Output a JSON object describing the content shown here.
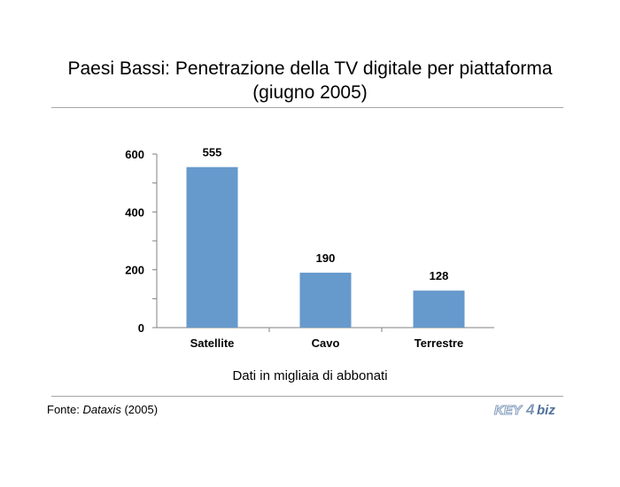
{
  "title_line1": "Paesi Bassi: Penetrazione della TV digitale per piattaforma",
  "title_line2": "(giugno 2005)",
  "note": "Dati in migliaia di abbonati",
  "source": {
    "prefix": "Fonte: ",
    "name": "Dataxis",
    "year": " (2005)"
  },
  "logo": {
    "text": "KEY4biz",
    "part1": "KEY",
    "part2": "4",
    "part3": "biz"
  },
  "colors": {
    "bar": "#6699cc",
    "axis": "#808080",
    "rule": "#a6a6a6"
  },
  "chart_data": {
    "type": "bar",
    "categories": [
      "Satellite",
      "Cavo",
      "Terrestre"
    ],
    "values": [
      555,
      190,
      128
    ],
    "data_labels": [
      "555",
      "190",
      "128"
    ],
    "ylim": [
      0,
      600
    ],
    "yticks": [
      0,
      200,
      400,
      600
    ],
    "xlabel": "",
    "ylabel": "",
    "grid": false,
    "legend": "none"
  }
}
